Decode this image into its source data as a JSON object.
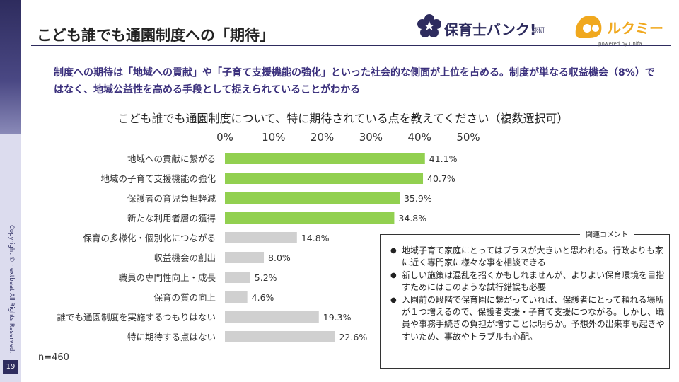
{
  "page": {
    "title": "こども誰でも通園制度への「期待」",
    "headline": "制度への期待は「地域への貢献」や「子育て支援機能の強化」といった社会的な側面が上位を占める。制度が単なる収益機会（8%）ではなく、地域公益性を高める手段として捉えられていることがわかる",
    "page_number": "19",
    "copyright": "Copyright © nextbeat All Rights Reserved."
  },
  "logos": {
    "hoiku_name": "保育士バンク!",
    "hoiku_sub": "総研",
    "lukumi_name": "ルクミー",
    "lukumi_powered": "powered by Unifa"
  },
  "chart_data": {
    "type": "bar",
    "orientation": "horizontal",
    "title": "こども誰でも通園制度について、特に期待されている点を教えてください（複数選択可）",
    "categories": [
      "地域への貢献に繋がる",
      "地域の子育て支援機能の強化",
      "保護者の育児負担軽減",
      "新たな利用者層の獲得",
      "保育の多様化・個別化につながる",
      "収益機会の創出",
      "職員の専門性向上・成長",
      "保育の質の向上",
      "誰でも通園制度を実施するつもりはない",
      "特に期待する点はない"
    ],
    "values": [
      41.1,
      40.7,
      35.9,
      34.8,
      14.8,
      8.0,
      5.2,
      4.6,
      19.3,
      22.6
    ],
    "value_labels": [
      "41.1%",
      "40.7%",
      "35.9%",
      "34.8%",
      "14.8%",
      "8.0%",
      "5.2%",
      "4.6%",
      "19.3%",
      "22.6%"
    ],
    "highlighted_count": 4,
    "ticks": [
      "0%",
      "10%",
      "20%",
      "30%",
      "40%",
      "50%"
    ],
    "xlim": [
      0,
      50
    ],
    "xlabel": "",
    "ylabel": "",
    "grid": false,
    "n_label": "n=460",
    "colors": {
      "highlight": "#92d050",
      "other": "#d0d0d0"
    }
  },
  "comments": {
    "title": "関連コメント",
    "items": [
      "地域子育て家庭にとってはプラスが大きいと思われる。行政よりも家に近く専門家に様々な事を相談できる",
      "新しい施策は混乱を招くかもしれませんが、よりよい保育環境を目指すためにはこのような試行錯誤も必要",
      "入園前の段階で保育園に繋がっていれば、保護者にとって頼れる場所が１つ増えるので、保護者支援・子育て支援につながる。しかし、職員や事務手続きの負担が増すことは明らか。予想外の出来事も起きやすいため、事故やトラブルも心配。"
    ]
  }
}
